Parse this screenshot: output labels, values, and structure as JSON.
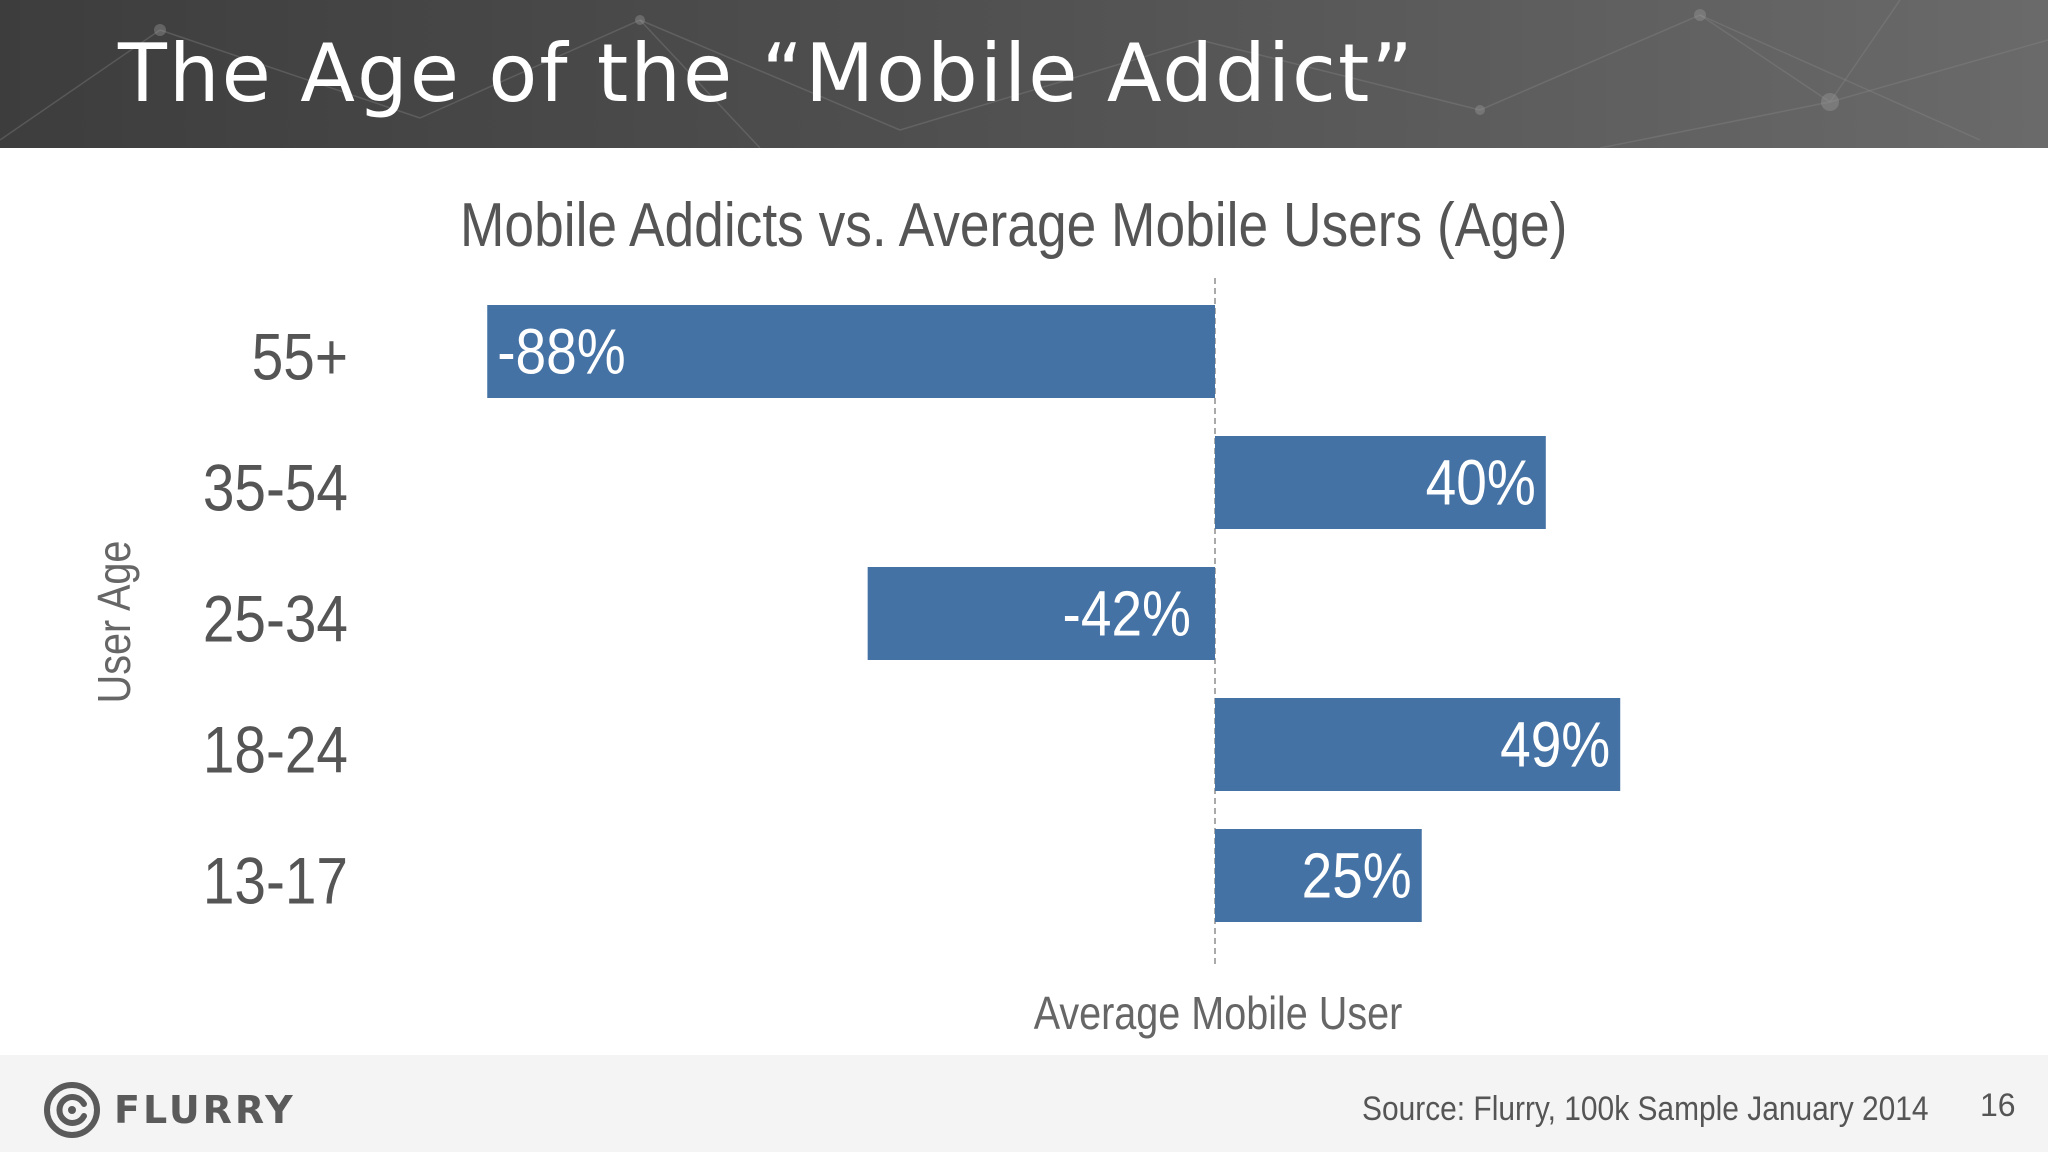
{
  "slide": {
    "title": "The Age of the “Mobile Addict”"
  },
  "chart_data": {
    "type": "bar",
    "orientation": "horizontal",
    "title": "Mobile Addicts vs. Average Mobile Users (Age)",
    "ylabel": "User Age",
    "xlabel": "",
    "baseline_label": "Average Mobile User",
    "categories": [
      "55+",
      "35-54",
      "25-34",
      "18-24",
      "13-17"
    ],
    "values": [
      -88,
      40,
      -42,
      49,
      25
    ],
    "value_labels": [
      "-88%",
      "40%",
      "-42%",
      "49%",
      "25%"
    ],
    "xlim": [
      -88,
      49
    ],
    "bar_color": "#4472a4",
    "grid": false,
    "legend": "none"
  },
  "footer": {
    "logo_text": "FLURRY",
    "source": "Source: Flurry, 100k Sample January 2014",
    "page_number": "16"
  },
  "icons": {
    "logo": "flurry-swirl-icon"
  }
}
